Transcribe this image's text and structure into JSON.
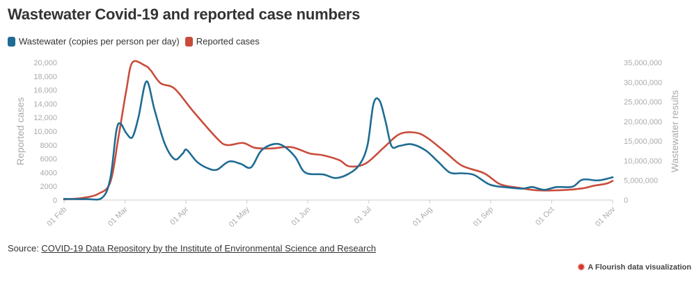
{
  "title": "Wastewater Covid-19 and reported case numbers",
  "source": {
    "prefix": "Source: ",
    "link_text": "COVID-19 Data Repository by the Institute of Environmental Science and Research"
  },
  "branding": {
    "icon": "flourish-logo-icon",
    "text": "A Flourish data visualization"
  },
  "chart_data": {
    "type": "line",
    "title": "Wastewater Covid-19 and reported case numbers",
    "legend": {
      "placement": "top-left"
    },
    "grid": false,
    "x_ticks": [
      "01 Feb",
      "01 Mar",
      "01 Apr",
      "01 May",
      "01 Jun",
      "01 Jul",
      "01 Aug",
      "01 Sep",
      "01 Oct",
      "01 Nov"
    ],
    "x_range": [
      "2022-02-01",
      "2022-11-01"
    ],
    "y_left": {
      "label": "Reported cases",
      "range": [
        0,
        20000
      ],
      "ticks": [
        "0",
        "2000",
        "4000",
        "6000",
        "8000",
        "10,000",
        "12,000",
        "14,000",
        "16,000",
        "18,000",
        "20,000"
      ]
    },
    "y_right": {
      "label": "Wastewater results",
      "range": [
        0,
        35000000
      ],
      "ticks": [
        "0",
        "5,000,000",
        "10,000,000",
        "15,000,000",
        "20,000,000",
        "25,000,000",
        "30,000,000",
        "35,000,000"
      ]
    },
    "series": [
      {
        "name": "Wastewater (copies per person per day)",
        "color": "#1e6b93",
        "axis": "right",
        "points": [
          [
            "2022-02-01",
            300000
          ],
          [
            "2022-02-12",
            250000
          ],
          [
            "2022-02-20",
            600000
          ],
          [
            "2022-02-24",
            5500000
          ],
          [
            "2022-02-27",
            17500000
          ],
          [
            "2022-03-01",
            19500000
          ],
          [
            "2022-03-04",
            17000000
          ],
          [
            "2022-03-07",
            16000000
          ],
          [
            "2022-03-10",
            21000000
          ],
          [
            "2022-03-14",
            30200000
          ],
          [
            "2022-03-18",
            23000000
          ],
          [
            "2022-03-23",
            14500000
          ],
          [
            "2022-03-28",
            10400000
          ],
          [
            "2022-04-01",
            11800000
          ],
          [
            "2022-04-03",
            12800000
          ],
          [
            "2022-04-08",
            9800000
          ],
          [
            "2022-04-13",
            8200000
          ],
          [
            "2022-04-18",
            7700000
          ],
          [
            "2022-04-24",
            9800000
          ],
          [
            "2022-04-30",
            9200000
          ],
          [
            "2022-05-05",
            8300000
          ],
          [
            "2022-05-10",
            12500000
          ],
          [
            "2022-05-16",
            14200000
          ],
          [
            "2022-05-21",
            13800000
          ],
          [
            "2022-05-27",
            11000000
          ],
          [
            "2022-06-01",
            7000000
          ],
          [
            "2022-06-10",
            6500000
          ],
          [
            "2022-06-16",
            5600000
          ],
          [
            "2022-06-22",
            6500000
          ],
          [
            "2022-06-28",
            9000000
          ],
          [
            "2022-07-02",
            14000000
          ],
          [
            "2022-07-05",
            24500000
          ],
          [
            "2022-07-08",
            25300000
          ],
          [
            "2022-07-11",
            20000000
          ],
          [
            "2022-07-14",
            13700000
          ],
          [
            "2022-07-18",
            13800000
          ],
          [
            "2022-07-24",
            14200000
          ],
          [
            "2022-07-31",
            12600000
          ],
          [
            "2022-08-06",
            9800000
          ],
          [
            "2022-08-12",
            7000000
          ],
          [
            "2022-08-18",
            6800000
          ],
          [
            "2022-08-24",
            6400000
          ],
          [
            "2022-09-01",
            3900000
          ],
          [
            "2022-09-10",
            3200000
          ],
          [
            "2022-09-17",
            2900000
          ],
          [
            "2022-09-22",
            3300000
          ],
          [
            "2022-09-28",
            2600000
          ],
          [
            "2022-10-04",
            3300000
          ],
          [
            "2022-10-12",
            3400000
          ],
          [
            "2022-10-17",
            5200000
          ],
          [
            "2022-10-25",
            5000000
          ],
          [
            "2022-11-01",
            5800000
          ]
        ]
      },
      {
        "name": "Reported cases",
        "color": "#c94c3b",
        "axis": "left",
        "points": [
          [
            "2022-02-01",
            100
          ],
          [
            "2022-02-10",
            300
          ],
          [
            "2022-02-18",
            900
          ],
          [
            "2022-02-24",
            2600
          ],
          [
            "2022-02-28",
            9000
          ],
          [
            "2022-03-04",
            16000
          ],
          [
            "2022-03-07",
            20000
          ],
          [
            "2022-03-13",
            19600
          ],
          [
            "2022-03-16",
            18900
          ],
          [
            "2022-03-21",
            17000
          ],
          [
            "2022-03-28",
            16200
          ],
          [
            "2022-04-06",
            13000
          ],
          [
            "2022-04-18",
            9000
          ],
          [
            "2022-04-23",
            8000
          ],
          [
            "2022-05-01",
            8300
          ],
          [
            "2022-05-07",
            7600
          ],
          [
            "2022-05-15",
            7500
          ],
          [
            "2022-05-25",
            7700
          ],
          [
            "2022-06-03",
            6800
          ],
          [
            "2022-06-10",
            6500
          ],
          [
            "2022-06-18",
            5800
          ],
          [
            "2022-06-23",
            4900
          ],
          [
            "2022-07-01",
            5300
          ],
          [
            "2022-07-10",
            7600
          ],
          [
            "2022-07-18",
            9600
          ],
          [
            "2022-07-26",
            9800
          ],
          [
            "2022-08-01",
            9000
          ],
          [
            "2022-08-10",
            6900
          ],
          [
            "2022-08-18",
            5000
          ],
          [
            "2022-08-29",
            3900
          ],
          [
            "2022-09-06",
            2300
          ],
          [
            "2022-09-15",
            1800
          ],
          [
            "2022-09-25",
            1400
          ],
          [
            "2022-10-08",
            1450
          ],
          [
            "2022-10-17",
            1700
          ],
          [
            "2022-10-23",
            2100
          ],
          [
            "2022-10-29",
            2400
          ],
          [
            "2022-11-01",
            2800
          ]
        ]
      }
    ]
  }
}
